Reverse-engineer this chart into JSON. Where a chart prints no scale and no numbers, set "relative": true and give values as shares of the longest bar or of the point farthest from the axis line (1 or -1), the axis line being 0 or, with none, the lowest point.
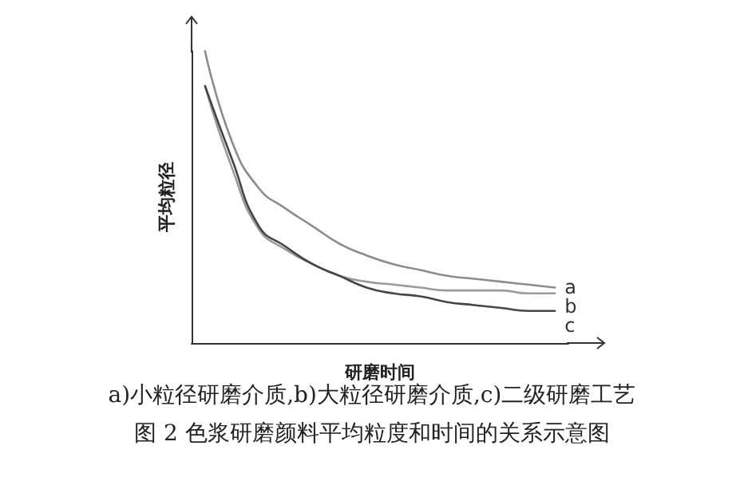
{
  "chart_data": {
    "type": "line",
    "relative": true,
    "title": "图 2 色浆研磨颜料平均粒度和时间的关系示意图",
    "annotations": [
      "a)小粒径研磨介质,b)大粒径研磨介质,c)二级研磨工艺"
    ],
    "xlabel": "研磨时间",
    "ylabel": "平均粒径",
    "categories": [
      null,
      null,
      null,
      null,
      null,
      null,
      null,
      null,
      null,
      null,
      null,
      null,
      null,
      null
    ],
    "series": [
      {
        "name": "a",
        "color": "#8c8c8c",
        "values": [
          1.0,
          0.69,
          0.53,
          0.46,
          0.4,
          0.34,
          0.3,
          0.27,
          0.25,
          0.23,
          0.22,
          0.21,
          0.2,
          0.19
        ]
      },
      {
        "name": "b",
        "color": "#9a9a9a",
        "values": [
          0.88,
          0.6,
          0.39,
          0.32,
          0.27,
          0.23,
          0.21,
          0.2,
          0.19,
          0.18,
          0.18,
          0.18,
          0.17,
          0.17
        ]
      },
      {
        "name": "c",
        "color": "#454545",
        "values": [
          0.88,
          0.63,
          0.4,
          0.33,
          0.27,
          0.23,
          0.19,
          0.17,
          0.16,
          0.14,
          0.13,
          0.12,
          0.11,
          0.11
        ]
      }
    ],
    "grid": false,
    "legend": false,
    "marker": "none",
    "line_style": "solid"
  }
}
